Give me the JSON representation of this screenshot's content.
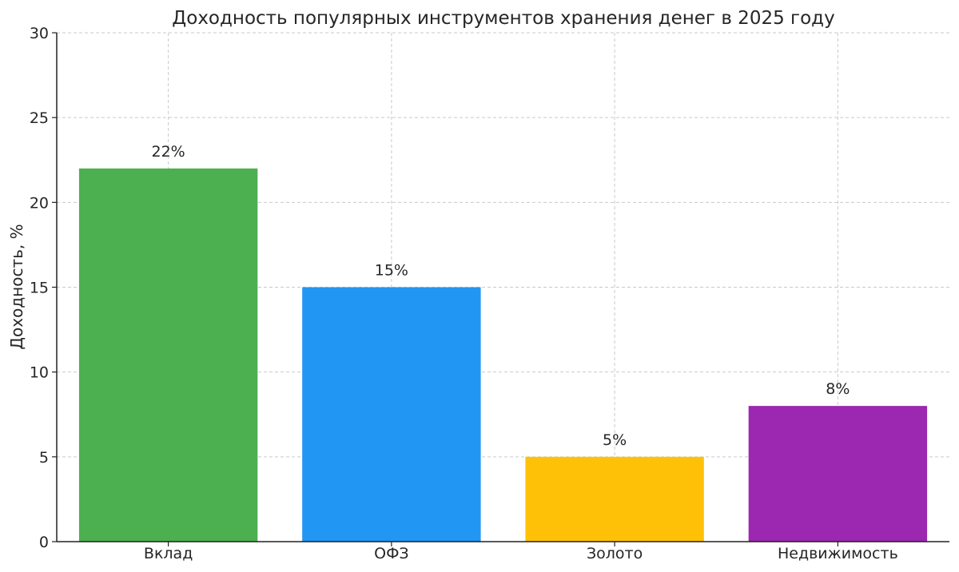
{
  "chart_data": {
    "type": "bar",
    "title": "Доходность популярных инструментов хранения денег в 2025 году",
    "xlabel": "",
    "ylabel": "Доходность, %",
    "categories": [
      "Вклад",
      "ОФЗ",
      "Золото",
      "Недвижимость"
    ],
    "values": [
      22,
      15,
      5,
      8
    ],
    "value_labels": [
      "22%",
      "15%",
      "5%",
      "8%"
    ],
    "colors": [
      "#4caf50",
      "#2196f3",
      "#ffc107",
      "#9c27b0"
    ],
    "ylim": [
      0,
      30
    ],
    "yticks": [
      0,
      5,
      10,
      15,
      20,
      25,
      30
    ],
    "grid": true
  }
}
